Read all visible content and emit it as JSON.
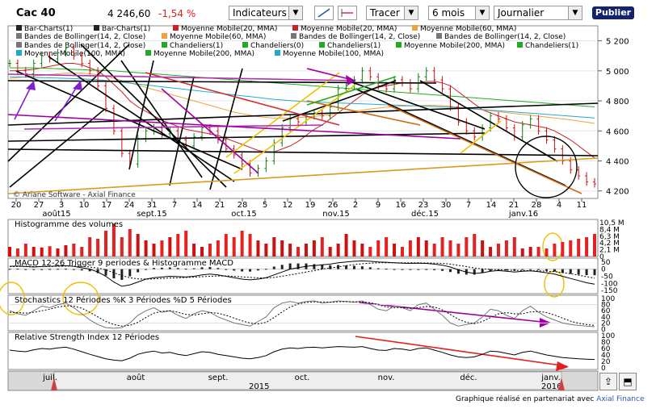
{
  "header": {
    "index_name": "Cac 40",
    "last_value": "4 246,60",
    "change": "-1,54 %",
    "indicators_label": "Indicateurs",
    "draw_label": "Tracer",
    "period_value": "6 mois",
    "interval_value": "Journalier",
    "publish_label": "Publier"
  },
  "legend": {
    "row1": [
      "Bar-Charts(1)",
      "Bar-Charts(1)",
      "Moyenne Mobile(20, MMA)",
      "Moyenne Mobile(20, MMA)",
      "Moyenne Mobile(60, MMA)"
    ],
    "row2": [
      "Bandes de Bollinger(14, 2, Close)",
      "Moyenne Mobile(60, MMA)",
      "Bandes de Bollinger(14, 2, Close)",
      "Bandes de Bollinger(14, 2, Close)"
    ],
    "row3": [
      "Bandes de Bollinger(14, 2, Close)",
      "Chandeliers(1)",
      "Chandeliers(0)",
      "Chandeliers(1)",
      "Moyenne Mobile(200, MMA)",
      "Chandeliers(1)"
    ],
    "row4": [
      "Moyenne Mobile(100, MMA)",
      "Moyenne Mobile(200, MMA)",
      "Moyenne Mobile(100, MMA)"
    ],
    "colors": {
      "bar": "#222222",
      "mm20": "#cc2222",
      "mm60": "#f0a040",
      "bollinger": "#777777",
      "candles": "#22aa22",
      "mm200": "#22aa22",
      "mm100": "#22aacc"
    }
  },
  "copyright": "© Ariane Software - Axial Finance",
  "footer": {
    "text": "Graphique réalisé en partenariat avec",
    "link": "Axial Finance"
  },
  "chart_data": [
    {
      "type": "line",
      "name": "price",
      "ylim": [
        4150,
        5300
      ],
      "yticks": [
        "5 200",
        "5 000",
        "4 800",
        "4 600",
        "4 400",
        "4 200"
      ],
      "ytick_values": [
        5200,
        5000,
        4800,
        4600,
        4400,
        4200
      ],
      "xticks": [
        "20",
        "27",
        "3",
        "10",
        "17",
        "24",
        "31",
        "7",
        "14",
        "21",
        "28",
        "5",
        "12",
        "19",
        "26",
        "2",
        "9",
        "16",
        "23",
        "30",
        "7",
        "14",
        "21",
        "28",
        "4",
        "11"
      ],
      "months": [
        "août15",
        "sept.15",
        "oct.15",
        "nov.15",
        "déc.15",
        "janv.16"
      ],
      "close": [
        5050,
        5000,
        4980,
        5050,
        5100,
        5080,
        5120,
        5150,
        5100,
        5050,
        5000,
        4900,
        4750,
        4600,
        4450,
        4380,
        4550,
        4600,
        4620,
        4580,
        4600,
        4540,
        4500,
        4560,
        4620,
        4600,
        4540,
        4480,
        4440,
        4380,
        4320,
        4350,
        4400,
        4520,
        4620,
        4680,
        4660,
        4700,
        4720,
        4700,
        4760,
        4880,
        4900,
        4940,
        5000,
        4960,
        4900,
        4880,
        4940,
        4920,
        4880,
        4960,
        5000,
        4940,
        4880,
        4760,
        4660,
        4600,
        4560,
        4620,
        4700,
        4680,
        4620,
        4560,
        4640,
        4680,
        4600,
        4540,
        4480,
        4400,
        4340,
        4300,
        4260,
        4247
      ],
      "mm20": [
        5000,
        5000,
        5005,
        5010,
        5020,
        5030,
        5040,
        5050,
        5050,
        5040,
        5020,
        5000,
        4960,
        4910,
        4860,
        4800,
        4760,
        4730,
        4700,
        4670,
        4650,
        4630,
        4610,
        4600,
        4590,
        4580,
        4570,
        4550,
        4530,
        4510,
        4490,
        4470,
        4460,
        4460,
        4480,
        4500,
        4530,
        4570,
        4610,
        4640,
        4680,
        4720,
        4760,
        4800,
        4840,
        4870,
        4890,
        4900,
        4910,
        4920,
        4920,
        4920,
        4930,
        4930,
        4920,
        4900,
        4860,
        4820,
        4780,
        4740,
        4720,
        4700,
        4680,
        4660,
        4650,
        4640,
        4630,
        4620,
        4600,
        4570,
        4540,
        4500,
        4460,
        4420
      ],
      "mm60": [
        4950,
        4955,
        4960,
        4965,
        4970,
        4975,
        4980,
        4985,
        4985,
        4985,
        4980,
        4975,
        4965,
        4950,
        4935,
        4920,
        4905,
        4890,
        4875,
        4860,
        4845,
        4830,
        4815,
        4800,
        4785,
        4770,
        4755,
        4740,
        4725,
        4715,
        4705,
        4695,
        4690,
        4685,
        4685,
        4685,
        4688,
        4692,
        4697,
        4702,
        4708,
        4715,
        4722,
        4730,
        4738,
        4746,
        4752,
        4758,
        4762,
        4765,
        4767,
        4768,
        4770,
        4770,
        4768,
        4764,
        4758,
        4752,
        4746,
        4740,
        4734,
        4728,
        4722,
        4716,
        4710,
        4704,
        4698,
        4692,
        4686,
        4680,
        4674,
        4666,
        4658,
        4650
      ],
      "mm100": [
        4960,
        4960,
        4958,
        4956,
        4955,
        4954,
        4952,
        4950,
        4948,
        4946,
        4944,
        4940,
        4936,
        4930,
        4924,
        4918,
        4912,
        4906,
        4900,
        4894,
        4888,
        4882,
        4876,
        4870,
        4864,
        4858,
        4852,
        4846,
        4840,
        4834,
        4828,
        4822,
        4816,
        4810,
        4806,
        4802,
        4798,
        4795,
        4792,
        4790,
        4788,
        4786,
        4784,
        4782,
        4780,
        4778,
        4776,
        4774,
        4772,
        4770,
        4768,
        4766,
        4764,
        4762,
        4760,
        4757,
        4754,
        4750,
        4746,
        4742,
        4738,
        4734,
        4730,
        4726,
        4722,
        4718,
        4714,
        4710,
        4706,
        4702,
        4698,
        4694,
        4690,
        4686
      ],
      "mm200": [
        5020,
        5020,
        5020,
        5020,
        5018,
        5016,
        5014,
        5012,
        5010,
        5008,
        5006,
        5004,
        5002,
        5000,
        4996,
        4992,
        4988,
        4984,
        4980,
        4976,
        4972,
        4968,
        4964,
        4960,
        4956,
        4952,
        4948,
        4944,
        4940,
        4936,
        4932,
        4928,
        4924,
        4920,
        4916,
        4912,
        4908,
        4904,
        4900,
        4896,
        4892,
        4888,
        4884,
        4880,
        4876,
        4872,
        4868,
        4864,
        4860,
        4856,
        4852,
        4848,
        4844,
        4840,
        4836,
        4832,
        4828,
        4824,
        4820,
        4816,
        4812,
        4808,
        4804,
        4800,
        4796,
        4792,
        4788,
        4784,
        4780,
        4776,
        4772,
        4768,
        4764,
        4760
      ]
    },
    {
      "type": "bar",
      "name": "volumes",
      "title": "Histogramme des volumes",
      "yticks": [
        "10,5 M",
        "8,4 M",
        "6,3 M",
        "4,2 M",
        "2,1 M",
        "0"
      ],
      "ytick_values": [
        10.5,
        8.4,
        6.3,
        4.2,
        2.1,
        0
      ],
      "ylim": [
        0,
        10.5
      ],
      "values": [
        3,
        2.5,
        4,
        3,
        2.8,
        3.2,
        2.5,
        3.5,
        4,
        3,
        6,
        5.5,
        8,
        10.2,
        6,
        8.5,
        7,
        5,
        4,
        5,
        6,
        7,
        8,
        4,
        3,
        4,
        5,
        7,
        6,
        8,
        7,
        5,
        4,
        6,
        5,
        4,
        3,
        4,
        5,
        6,
        3,
        4,
        7,
        5,
        4,
        3,
        5,
        6,
        4,
        3,
        5,
        6,
        5,
        4,
        6,
        5,
        4,
        6,
        7,
        5,
        3,
        4,
        5,
        6,
        2.5,
        3,
        3,
        2.5,
        4,
        4.5,
        5,
        5.5,
        6,
        7
      ]
    },
    {
      "type": "line",
      "name": "macd",
      "title": "MACD 12-26 Trigger 9 periodes & Histogramme MACD",
      "yticks": [
        "50",
        "0",
        "-50",
        "-100",
        "-150"
      ],
      "ytick_values": [
        50,
        0,
        -50,
        -100,
        -150
      ],
      "ylim": [
        -160,
        60
      ],
      "macd": [
        20,
        22,
        18,
        15,
        18,
        20,
        22,
        24,
        20,
        10,
        0,
        -20,
        -50,
        -90,
        -120,
        -110,
        -90,
        -70,
        -60,
        -55,
        -50,
        -52,
        -55,
        -50,
        -40,
        -35,
        -40,
        -50,
        -60,
        -70,
        -75,
        -70,
        -60,
        -40,
        -20,
        0,
        10,
        20,
        25,
        30,
        35,
        45,
        50,
        55,
        58,
        55,
        50,
        48,
        45,
        42,
        40,
        42,
        40,
        35,
        28,
        15,
        -5,
        -20,
        -30,
        -25,
        -15,
        -10,
        -15,
        -20,
        -15,
        -12,
        -18,
        -25,
        -35,
        -50,
        -65,
        -80,
        -95,
        -105
      ],
      "signal": [
        18,
        19,
        19,
        18,
        18,
        19,
        20,
        21,
        21,
        19,
        15,
        8,
        -5,
        -25,
        -45,
        -60,
        -68,
        -70,
        -68,
        -65,
        -62,
        -60,
        -58,
        -56,
        -53,
        -50,
        -48,
        -48,
        -50,
        -54,
        -58,
        -61,
        -62,
        -58,
        -50,
        -40,
        -30,
        -20,
        -10,
        0,
        8,
        16,
        25,
        32,
        38,
        42,
        44,
        45,
        45,
        45,
        44,
        44,
        43,
        42,
        40,
        35,
        27,
        18,
        8,
        2,
        -2,
        -4,
        -6,
        -9,
        -10,
        -11,
        -12,
        -14,
        -18,
        -24,
        -32,
        -42,
        -53,
        -63
      ]
    },
    {
      "type": "line",
      "name": "stochastics",
      "title": "Stochastics 12 Périodes %K 3 Périodes %D 5 Périodes",
      "yticks": [
        "100",
        "80",
        "60",
        "40",
        "20",
        "0"
      ],
      "ytick_values": [
        100,
        80,
        60,
        40,
        20,
        0
      ],
      "ylim": [
        0,
        100
      ],
      "k": [
        60,
        50,
        45,
        60,
        75,
        70,
        80,
        85,
        70,
        50,
        30,
        15,
        5,
        3,
        5,
        20,
        45,
        60,
        70,
        55,
        60,
        45,
        35,
        50,
        60,
        55,
        40,
        30,
        20,
        15,
        10,
        25,
        40,
        70,
        85,
        90,
        85,
        90,
        92,
        85,
        88,
        92,
        90,
        88,
        92,
        80,
        65,
        60,
        75,
        70,
        60,
        80,
        85,
        65,
        45,
        20,
        10,
        15,
        20,
        40,
        65,
        60,
        45,
        35,
        60,
        75,
        55,
        40,
        30,
        20,
        15,
        12,
        10,
        8
      ],
      "d": [
        55,
        54,
        52,
        55,
        60,
        65,
        72,
        76,
        75,
        68,
        55,
        40,
        25,
        15,
        10,
        12,
        22,
        38,
        52,
        58,
        60,
        55,
        48,
        46,
        50,
        54,
        52,
        45,
        36,
        27,
        20,
        17,
        22,
        38,
        56,
        72,
        82,
        87,
        89,
        89,
        88,
        89,
        90,
        89,
        89,
        86,
        80,
        72,
        70,
        70,
        68,
        70,
        74,
        72,
        63,
        48,
        32,
        22,
        18,
        25,
        38,
        50,
        54,
        50,
        50,
        56,
        58,
        54,
        46,
        36,
        26,
        19,
        15,
        12
      ]
    },
    {
      "type": "line",
      "name": "rsi",
      "title": "Relative Strength Index 12 Périodes",
      "yticks": [
        "100",
        "80",
        "60",
        "40",
        "20",
        "0"
      ],
      "ytick_values": [
        100,
        80,
        60,
        40,
        20,
        0
      ],
      "ylim": [
        0,
        100
      ],
      "values": [
        55,
        52,
        50,
        56,
        60,
        58,
        62,
        64,
        58,
        50,
        42,
        35,
        28,
        24,
        22,
        30,
        42,
        48,
        52,
        46,
        48,
        42,
        38,
        44,
        50,
        48,
        42,
        38,
        34,
        30,
        28,
        32,
        38,
        50,
        58,
        62,
        60,
        63,
        64,
        62,
        64,
        66,
        65,
        64,
        66,
        60,
        55,
        54,
        60,
        58,
        54,
        60,
        62,
        55,
        48,
        40,
        34,
        32,
        34,
        42,
        52,
        50,
        45,
        40,
        48,
        52,
        46,
        40,
        36,
        32,
        30,
        28,
        27,
        26
      ]
    }
  ],
  "navigator": {
    "months": [
      "juil.",
      "août",
      "sept.",
      "oct.",
      "nov.",
      "déc.",
      "janv."
    ],
    "year1": "2015",
    "year2": "2016"
  }
}
